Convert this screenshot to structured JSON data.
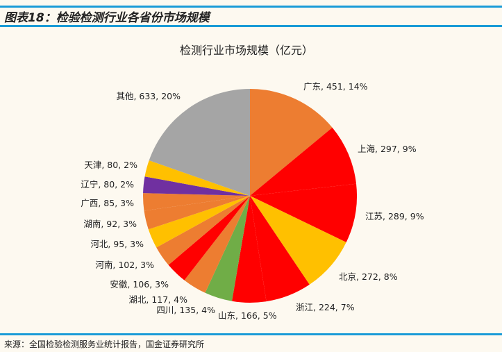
{
  "figure_title": "图表18：检验检测行业各省份市场规模",
  "source": "来源：全国检验检测服务业统计报告，国金证券研究所",
  "chart_data": {
    "type": "pie",
    "title": "检测行业市场规模（亿元）",
    "slices": [
      {
        "label": "广东",
        "value": 451,
        "percent": "14%",
        "color": "#ED7D31"
      },
      {
        "label": "上海",
        "value": 297,
        "percent": "9%",
        "color": "#FF0000"
      },
      {
        "label": "江苏",
        "value": 289,
        "percent": "9%",
        "color": "#FF0000"
      },
      {
        "label": "北京",
        "value": 272,
        "percent": "8%",
        "color": "#FFC000"
      },
      {
        "label": "浙江",
        "value": 224,
        "percent": "7%",
        "color": "#FF0000"
      },
      {
        "label": "山东",
        "value": 166,
        "percent": "5%",
        "color": "#FF0000"
      },
      {
        "label": "四川",
        "value": 135,
        "percent": "4%",
        "color": "#70AD47"
      },
      {
        "label": "湖北",
        "value": 117,
        "percent": "4%",
        "color": "#ED7D31"
      },
      {
        "label": "安徽",
        "value": 106,
        "percent": "3%",
        "color": "#FF0000"
      },
      {
        "label": "河南",
        "value": 102,
        "percent": "3%",
        "color": "#ED7D31"
      },
      {
        "label": "河北",
        "value": 95,
        "percent": "3%",
        "color": "#FFC000"
      },
      {
        "label": "湖南",
        "value": 92,
        "percent": "3%",
        "color": "#ED7D31"
      },
      {
        "label": "广西",
        "value": 85,
        "percent": "3%",
        "color": "#ED7D31"
      },
      {
        "label": "辽宁",
        "value": 80,
        "percent": "2%",
        "color": "#7030A0"
      },
      {
        "label": "天津",
        "value": 80,
        "percent": "2%",
        "color": "#FFC000"
      },
      {
        "label": "其他",
        "value": 633,
        "percent": "20%",
        "color": "#A5A5A5"
      }
    ],
    "start_angle": "12 o'clock",
    "direction": "clockwise",
    "legend": "none"
  }
}
